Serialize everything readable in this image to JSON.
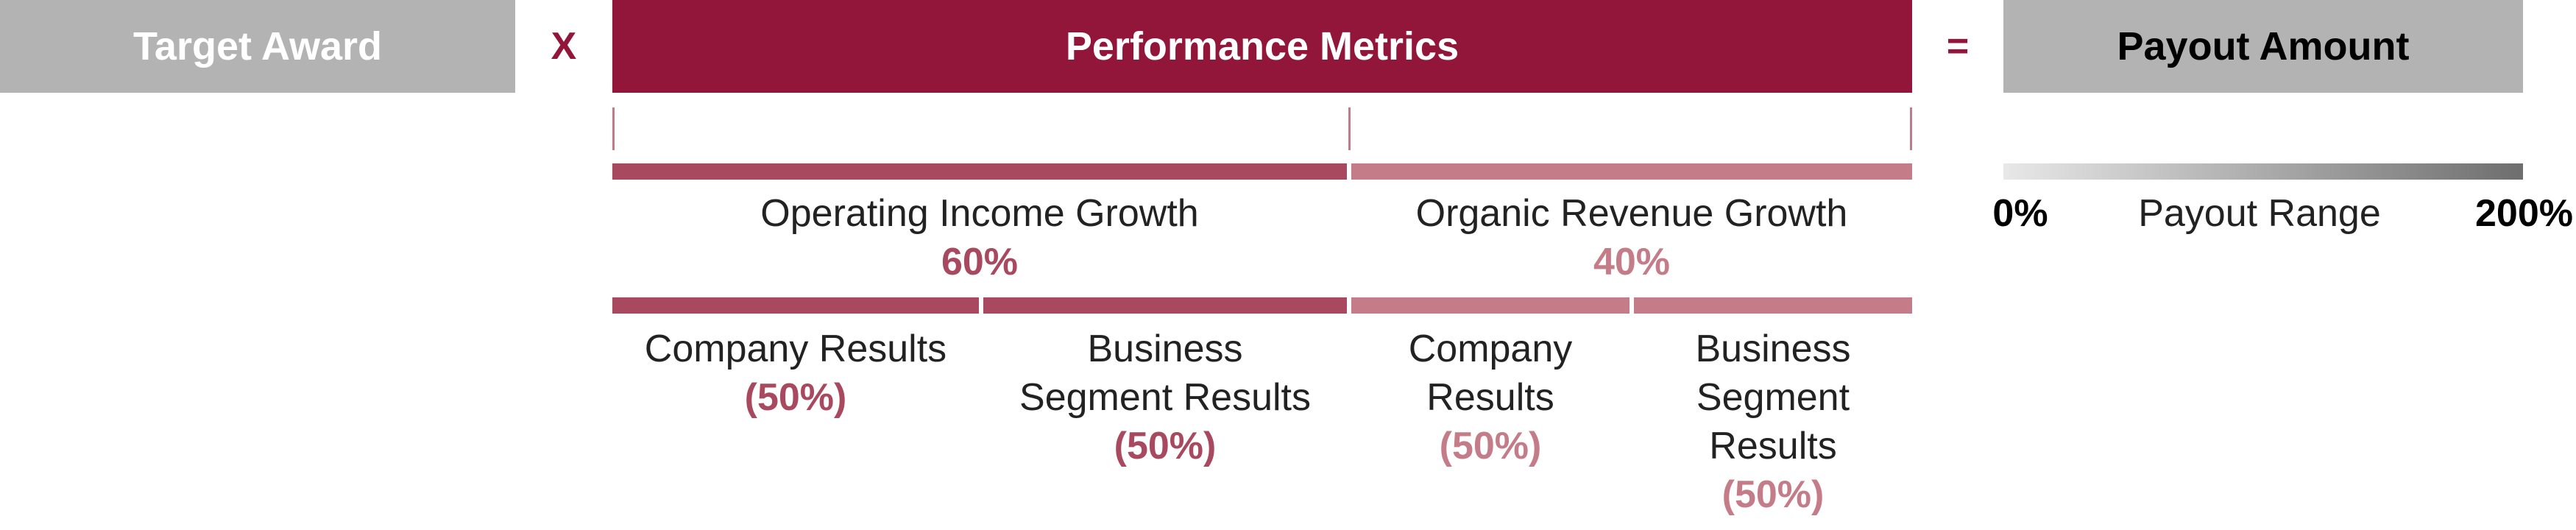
{
  "header": {
    "target_award": "Target Award",
    "multiply": "X",
    "performance_metrics": "Performance Metrics",
    "equals": "=",
    "payout_amount": "Payout Amount"
  },
  "metrics": {
    "operating_income": {
      "label": "Operating Income Growth",
      "weight": "60%",
      "sub": [
        {
          "label_lines": [
            "Company Results"
          ],
          "weight": "(50%)"
        },
        {
          "label_lines": [
            "Business",
            "Segment Results"
          ],
          "weight": "(50%)"
        }
      ]
    },
    "organic_revenue": {
      "label": "Organic Revenue Growth",
      "weight": "40%",
      "sub": [
        {
          "label_lines": [
            "Company",
            "Results"
          ],
          "weight": "(50%)"
        },
        {
          "label_lines": [
            "Business",
            "Segment",
            "Results"
          ],
          "weight": "(50%)"
        }
      ]
    }
  },
  "payout_range": {
    "min": "0%",
    "label": "Payout Range",
    "max": "200%"
  },
  "colors": {
    "primary": "#92153a",
    "dark_segment": "#a8495f",
    "light_segment": "#c47c89",
    "neutral": "#b3b3b3"
  }
}
